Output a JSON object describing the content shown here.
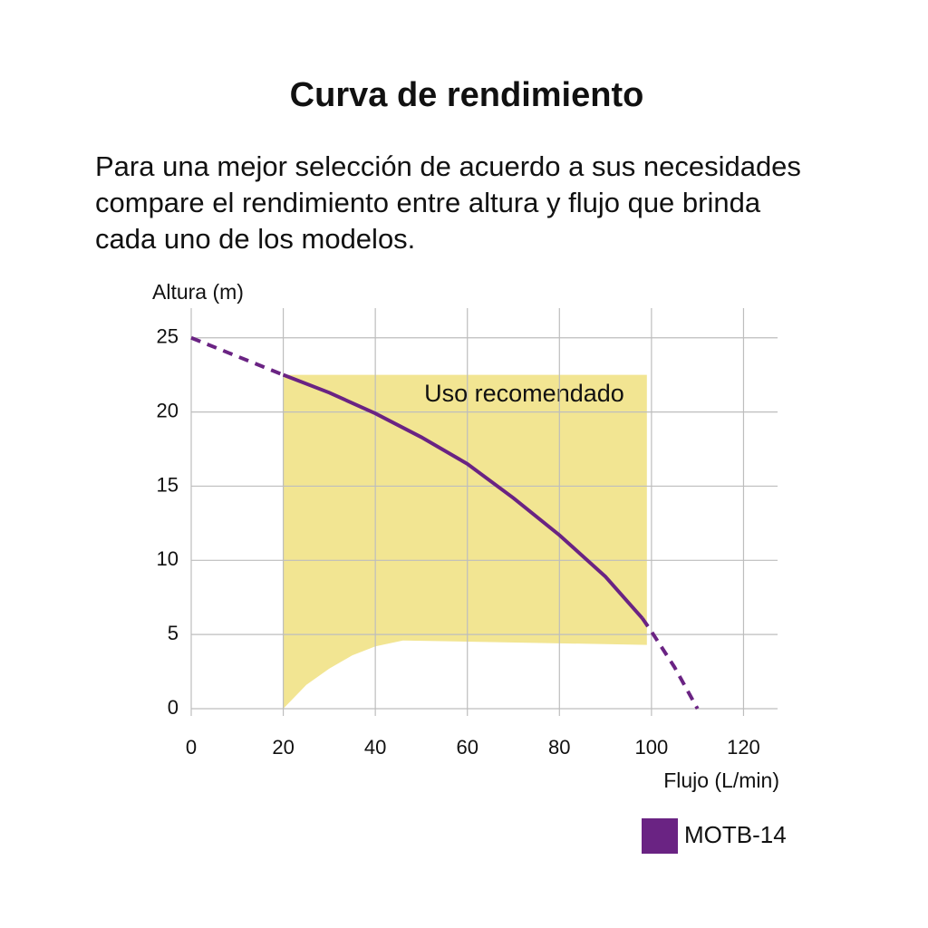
{
  "chart_data": {
    "type": "line",
    "title": "Curva de rendimiento",
    "subtitle": [
      "Para una mejor selección de acuerdo a sus necesidades",
      "compare el rendimiento entre altura y flujo que brinda",
      "cada uno de los modelos."
    ],
    "x_label": "Flujo (L/min)",
    "y_label": "Altura (m)",
    "xlim": [
      0,
      127
    ],
    "ylim": [
      0,
      27
    ],
    "xticks": [
      0,
      20,
      40,
      60,
      80,
      100,
      120
    ],
    "yticks": [
      0,
      5,
      10,
      15,
      20,
      25
    ],
    "grid": true,
    "legend": "bottom-right",
    "region": {
      "label": "Uso recomendado",
      "color": "#f2e592",
      "x": [
        20,
        25,
        30,
        35,
        40,
        46,
        99
      ],
      "upper": [
        22.5,
        22.5,
        22.5,
        22.5,
        22.5,
        22.5,
        22.5
      ],
      "lower": [
        0,
        1.6,
        2.7,
        3.6,
        4.2,
        4.6,
        4.3
      ]
    },
    "series": [
      {
        "name": "MOTB-14",
        "color": "#6a2383",
        "segments": [
          {
            "style": "dashed",
            "x": [
              0,
              20
            ],
            "values": [
              25,
              22.5
            ]
          },
          {
            "style": "solid",
            "x": [
              20,
              30,
              40,
              50,
              60,
              70,
              80,
              90,
              98
            ],
            "values": [
              22.5,
              21.3,
              19.9,
              18.3,
              16.5,
              14.2,
              11.7,
              8.9,
              6.1
            ]
          },
          {
            "style": "dashed",
            "x": [
              98,
              100,
              105,
              110
            ],
            "values": [
              6.1,
              5.2,
              2.8,
              0
            ]
          }
        ]
      }
    ]
  }
}
